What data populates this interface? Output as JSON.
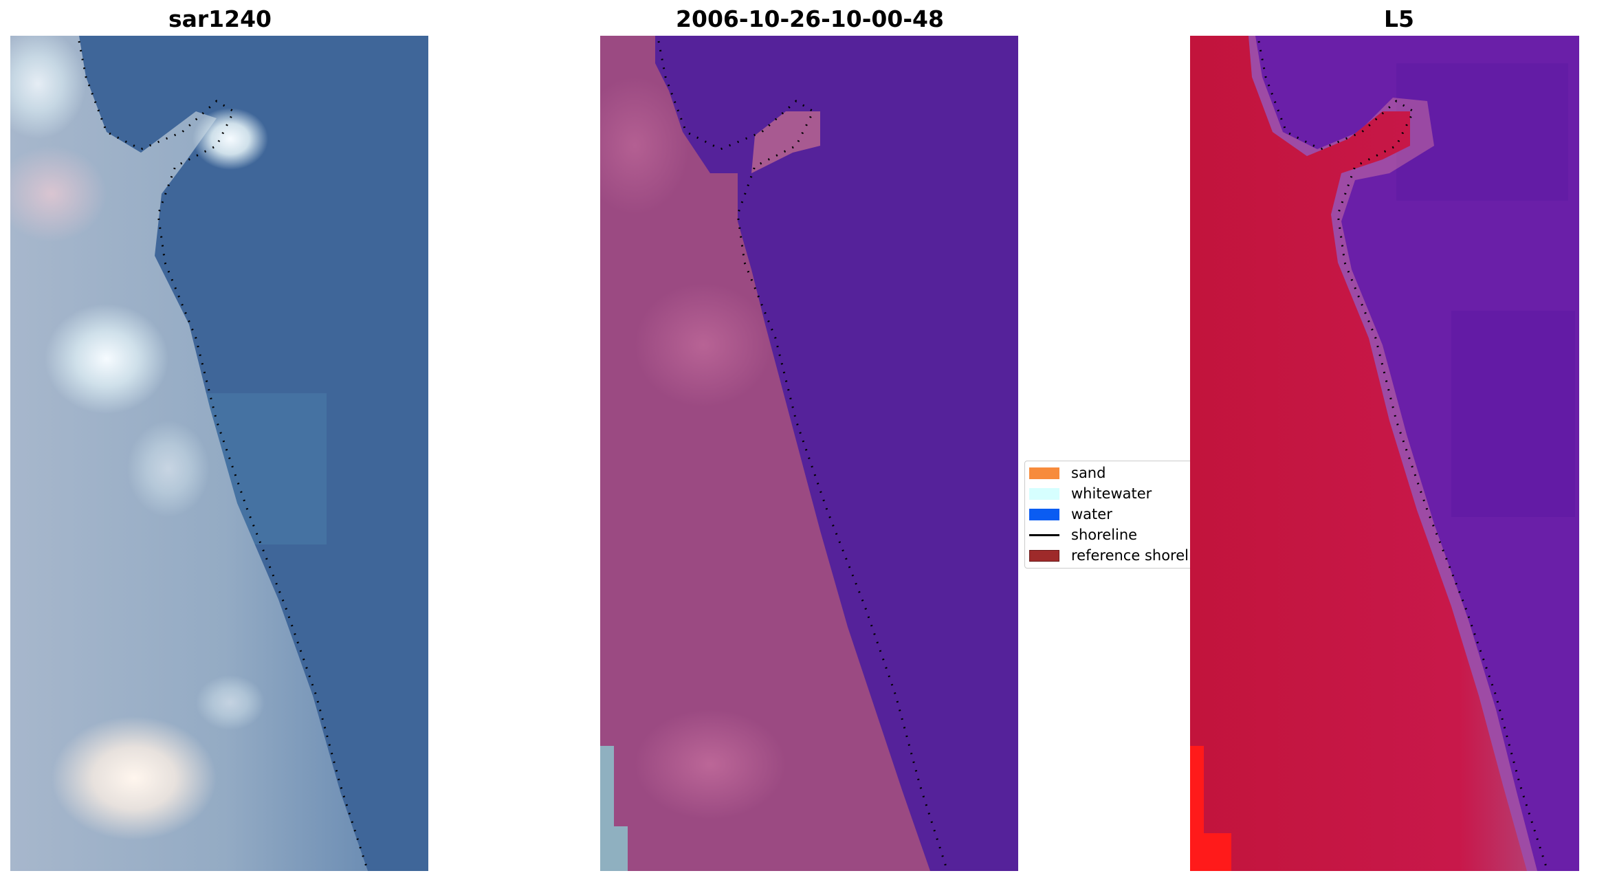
{
  "panels": [
    {
      "title": "sar1240"
    },
    {
      "title": "2006-10-26-10-00-48"
    },
    {
      "title": "L5"
    }
  ],
  "legend": {
    "items": [
      {
        "label": "sand",
        "type": "patch",
        "color": "#F78B3C"
      },
      {
        "label": "whitewater",
        "type": "patch",
        "color": "#D6FFFF"
      },
      {
        "label": "water",
        "type": "patch",
        "color": "#0A5CF2"
      },
      {
        "label": "shoreline",
        "type": "line",
        "color": "#000000"
      },
      {
        "label": "reference shoreline",
        "type": "patch",
        "color": "#9E2A2A"
      }
    ]
  },
  "colors": {
    "rgb_water": "#3f6699",
    "rgb_land": "#9fb0c8",
    "class_water": "#55229a",
    "class_land": "#9b4a82",
    "class_sand": "#8fb0c0",
    "mndwi_water": "#6a1fa8",
    "mndwi_land": "#c4163f",
    "mndwi_high": "#ff1a1a"
  }
}
